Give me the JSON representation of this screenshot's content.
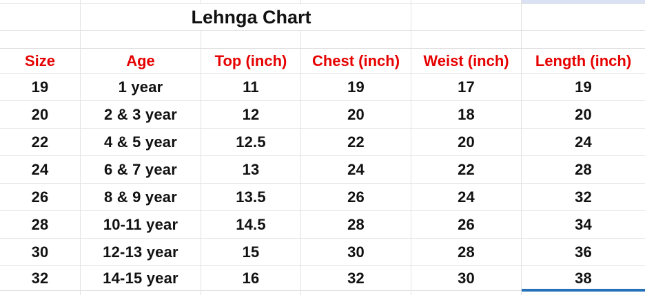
{
  "sheet": {
    "title": "Lehnga Chart",
    "columns": [
      "Size",
      "Age",
      "Top (inch)",
      "Chest (inch)",
      "Weist (inch)",
      "Length (inch)"
    ],
    "rows": [
      [
        "19",
        "1 year",
        "11",
        "19",
        "17",
        "19"
      ],
      [
        "20",
        "2 & 3 year",
        "12",
        "20",
        "18",
        "20"
      ],
      [
        "22",
        "4 & 5 year",
        "12.5",
        "22",
        "20",
        "24"
      ],
      [
        "24",
        "6 & 7 year",
        "13",
        "24",
        "22",
        "28"
      ],
      [
        "26",
        "8 & 9 year",
        "13.5",
        "26",
        "24",
        "32"
      ],
      [
        "28",
        "10-11 year",
        "14.5",
        "28",
        "26",
        "34"
      ],
      [
        "30",
        "12-13 year",
        "15",
        "30",
        "28",
        "36"
      ],
      [
        "32",
        "14-15 year",
        "16",
        "32",
        "30",
        "38"
      ]
    ]
  },
  "colors": {
    "background": "#ffffff",
    "gridline": "#e2e2e2",
    "title_text": "#111111",
    "header_text": "#e60000",
    "body_text": "#111111",
    "selection_fill": "#d9e1f2",
    "selection_border": "#2471b8"
  }
}
